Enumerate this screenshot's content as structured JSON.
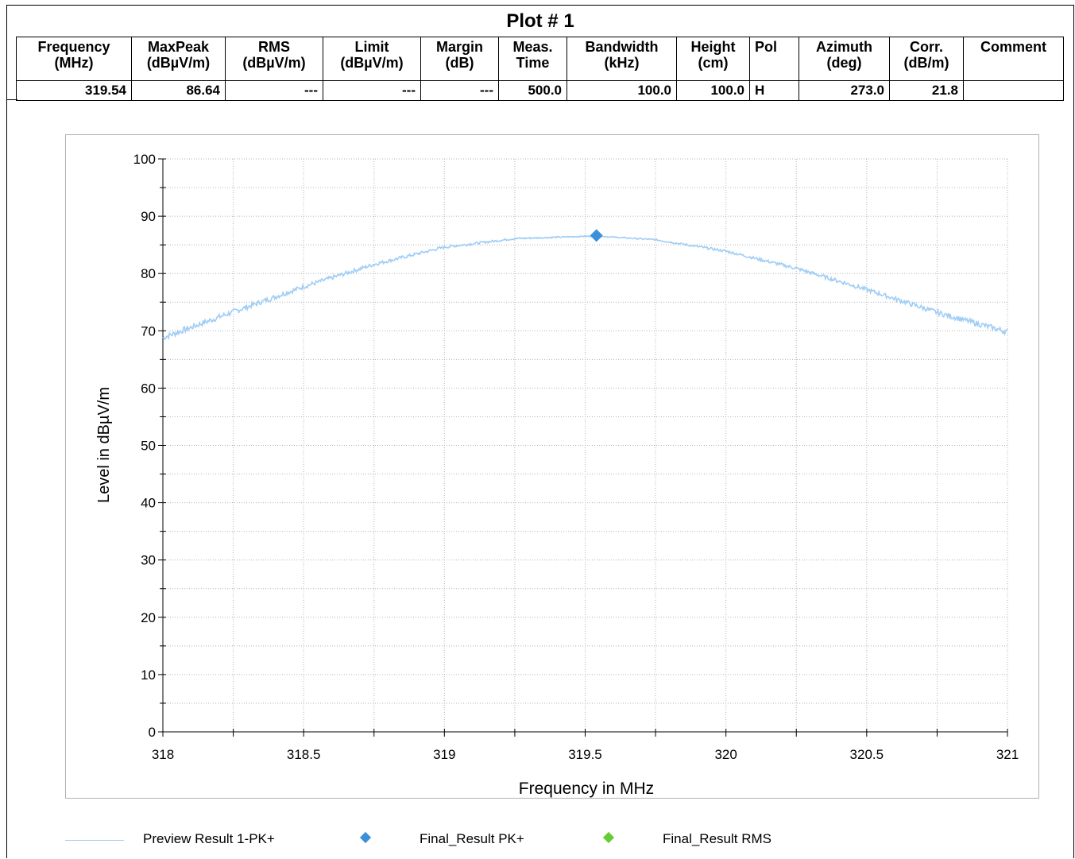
{
  "header": {
    "title": "Plot # 1",
    "columns": [
      {
        "line1": "Frequency",
        "line2": "(MHz)"
      },
      {
        "line1": "MaxPeak",
        "line2": "(dBµV/m)"
      },
      {
        "line1": "RMS",
        "line2": "(dBµV/m)"
      },
      {
        "line1": "Limit",
        "line2": "(dBµV/m)"
      },
      {
        "line1": "Margin",
        "line2": "(dB)"
      },
      {
        "line1": "Meas.",
        "line2": "Time"
      },
      {
        "line1": "Bandwidth",
        "line2": "(kHz)"
      },
      {
        "line1": "Height",
        "line2": "(cm)"
      },
      {
        "line1": "Pol",
        "line2": ""
      },
      {
        "line1": "Azimuth",
        "line2": "(deg)"
      },
      {
        "line1": "Corr.",
        "line2": "(dB/m)"
      },
      {
        "line1": "Comment",
        "line2": ""
      }
    ],
    "row": [
      "319.54",
      "86.64",
      "---",
      "---",
      "---",
      "500.0",
      "100.0",
      "100.0",
      "H",
      "273.0",
      "21.8",
      ""
    ]
  },
  "chart_data": {
    "type": "line",
    "xlabel": "Frequency in MHz",
    "ylabel": "Level in dBµV/m",
    "xlim": [
      318,
      321
    ],
    "ylim": [
      0,
      100
    ],
    "x_ticks": [
      "318",
      "318.5",
      "319",
      "319.5",
      "320",
      "320.5",
      "321"
    ],
    "y_ticks": [
      "0",
      "10",
      "20",
      "30",
      "40",
      "50",
      "60",
      "70",
      "80",
      "90",
      "100"
    ],
    "grid": true,
    "legend_position": "bottom",
    "series": [
      {
        "name": "Preview Result 1-PK+",
        "color": "#9fcdf5",
        "kind": "line",
        "x": [
          318.0,
          318.25,
          318.5,
          318.75,
          319.0,
          319.25,
          319.5,
          319.55,
          319.75,
          320.0,
          320.25,
          320.5,
          320.75,
          321.0
        ],
        "y": [
          68.8,
          73.3,
          77.7,
          81.6,
          84.6,
          86.1,
          86.5,
          86.5,
          85.9,
          83.9,
          80.9,
          77.2,
          73.2,
          69.8
        ]
      },
      {
        "name": "Final_Result PK+",
        "color": "#3b8fdb",
        "kind": "marker",
        "x": [
          319.54
        ],
        "y": [
          86.64
        ]
      },
      {
        "name": "Final_Result RMS",
        "color": "#66cc33",
        "kind": "marker",
        "x": [],
        "y": []
      }
    ]
  }
}
